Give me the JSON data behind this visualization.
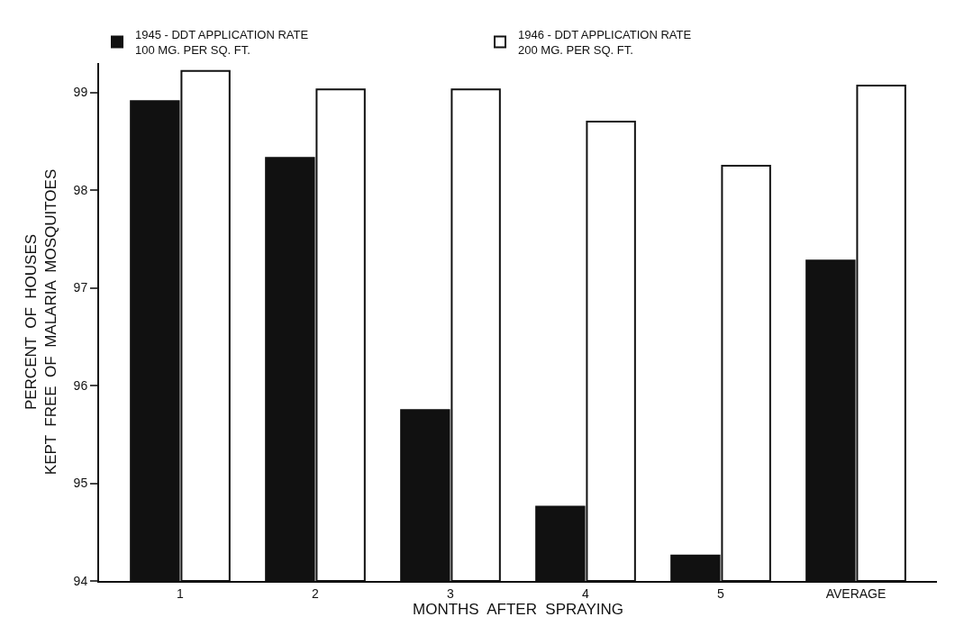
{
  "chart_data": {
    "type": "bar",
    "xlabel": "MONTHS  AFTER  SPRAYING",
    "ylabel": "PERCENT  OF  HOUSES\nKEPT  FREE  OF  MALARIA  MOSQUITOES",
    "categories": [
      "1",
      "2",
      "3",
      "4",
      "5",
      "AVERAGE"
    ],
    "series": [
      {
        "name": "1945 - DDT APPLICATION RATE\n100 MG. PER SQ. FT.",
        "color": "#111111",
        "values": [
          98.91,
          98.33,
          95.75,
          94.76,
          94.26,
          97.28
        ]
      },
      {
        "name": "1946 - DDT APPLICATION RATE\n200 MG. PER SQ. FT.",
        "color": "#ffffff",
        "values": [
          99.22,
          99.03,
          99.03,
          98.7,
          98.25,
          99.07
        ]
      }
    ],
    "ylim": [
      94,
      99.3
    ],
    "yticks": [
      94,
      95,
      96,
      97,
      98,
      99
    ],
    "legend": "top"
  }
}
